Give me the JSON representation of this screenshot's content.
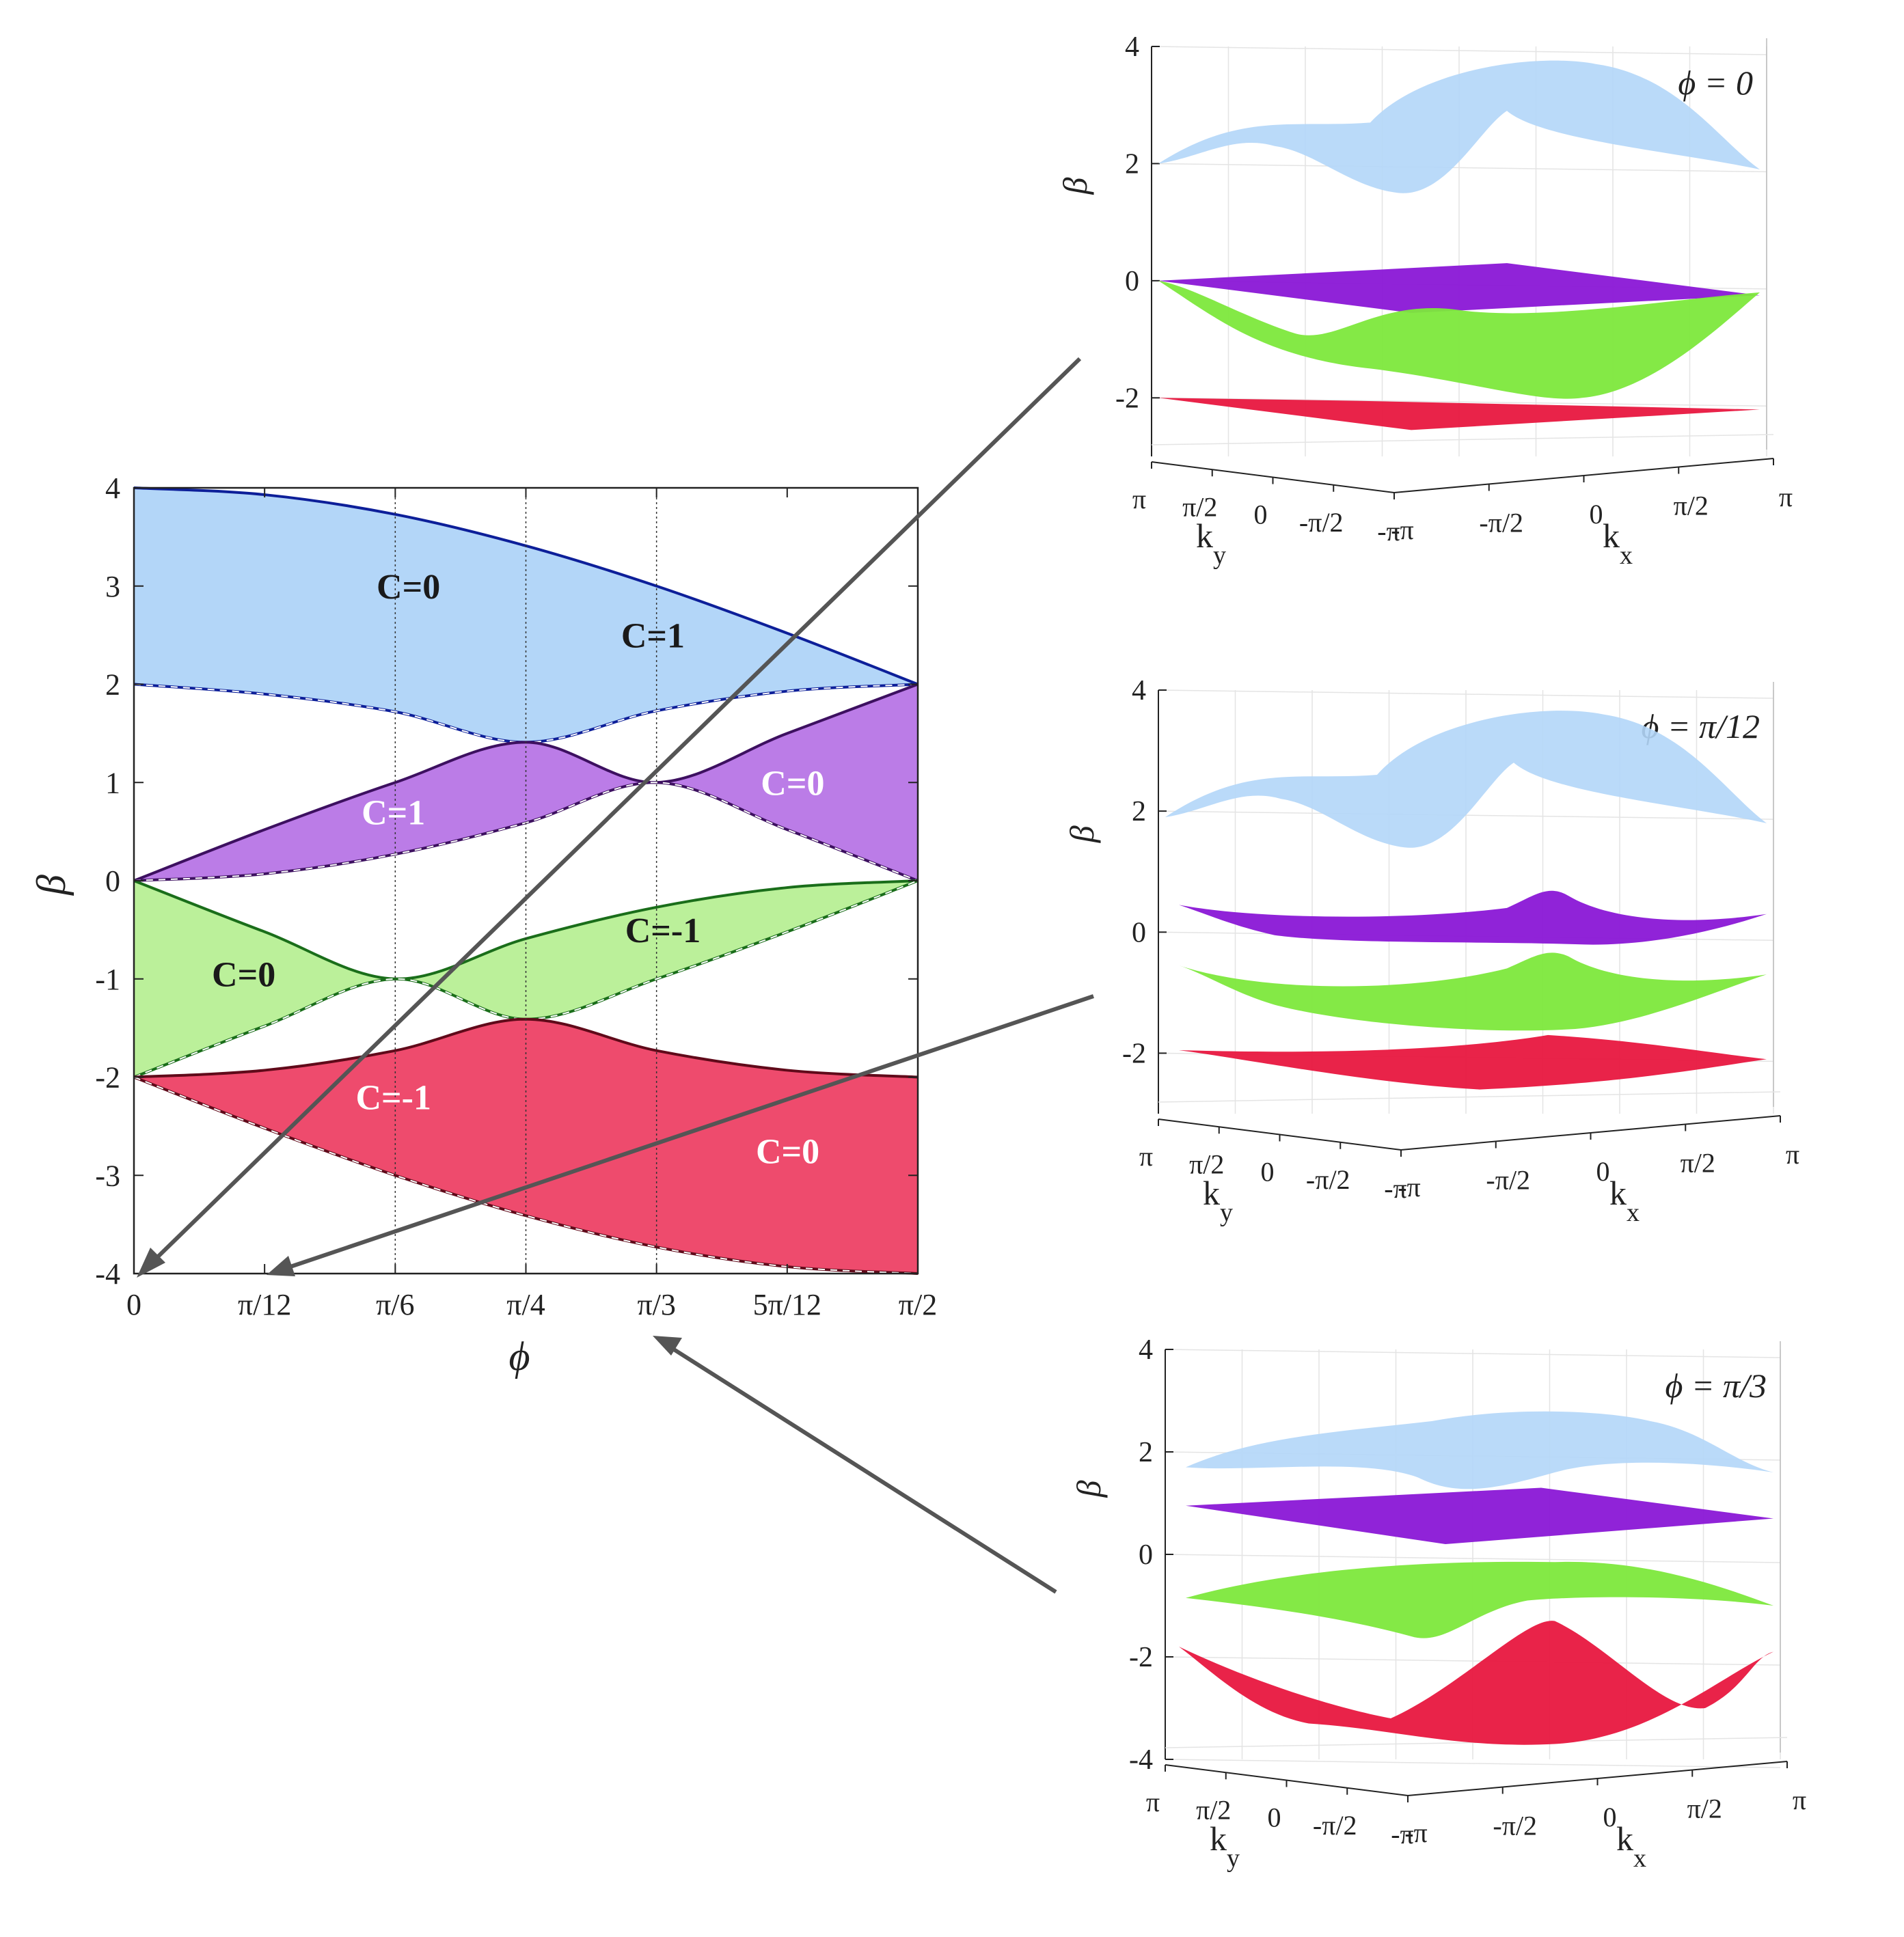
{
  "chart_data": [
    {
      "type": "area",
      "xlabel": "ϕ",
      "ylabel": "β",
      "xlim": [
        0,
        1.5708
      ],
      "ylim": [
        -4,
        4
      ],
      "grid": "vertical lines at π/6, π/4, π/3",
      "x_ticks": [
        {
          "value": 0,
          "label": "0"
        },
        {
          "value": 0.2618,
          "label": "π/12"
        },
        {
          "value": 0.5236,
          "label": "π/6"
        },
        {
          "value": 0.7854,
          "label": "π/4"
        },
        {
          "value": 1.0472,
          "label": "π/3"
        },
        {
          "value": 1.309,
          "label": "5π/12"
        },
        {
          "value": 1.5708,
          "label": "π/2"
        }
      ],
      "y_ticks": [
        "-4",
        "-3",
        "-2",
        "-1",
        "0",
        "1",
        "2",
        "3",
        "4"
      ],
      "y_tick_values": [
        -4,
        -3,
        -2,
        -1,
        0,
        1,
        2,
        3,
        4
      ],
      "colors": {
        "blue": "#b3d6f8",
        "purple": "#bb7ce7",
        "green": "#bbf09a",
        "red": "#ee4b6d",
        "blue_edge": "#0d1f99",
        "purple_edge": "#3d1060",
        "green_edge": "#1a6e1a",
        "red_edge": "#600a1a"
      },
      "bands": [
        {
          "color": "blue",
          "upper": "2+2cos(ϕ)",
          "lower": "min(2+2cos(2ϕ)... )",
          "x": [
            0,
            0.2618,
            0.5236,
            0.7854,
            1.0472,
            1.309,
            1.5708
          ],
          "upper_y": [
            4,
            3.93,
            3.73,
            3.41,
            3.0,
            2.52,
            2
          ],
          "lower_y": [
            2,
            1.9,
            1.72,
            1.41,
            1.73,
            1.93,
            2
          ]
        },
        {
          "color": "purple",
          "x": [
            0,
            0.2618,
            0.5236,
            0.7854,
            1.0472,
            1.309,
            1.5708
          ],
          "upper_y": [
            0,
            0.52,
            1.0,
            1.41,
            1.0,
            1.5,
            2
          ],
          "lower_y": [
            0,
            0.07,
            0.27,
            0.59,
            1.0,
            0.52,
            0
          ]
        },
        {
          "color": "green",
          "x": [
            0,
            0.2618,
            0.5236,
            0.7854,
            1.0472,
            1.309,
            1.5708
          ],
          "upper_y": [
            0,
            -0.52,
            -1.0,
            -0.59,
            -0.27,
            -0.07,
            0
          ],
          "lower_y": [
            -2,
            -1.48,
            -1.0,
            -1.41,
            -1.0,
            -0.52,
            0
          ]
        },
        {
          "color": "red",
          "x": [
            0,
            0.2618,
            0.5236,
            0.7854,
            1.0472,
            1.309,
            1.5708
          ],
          "upper_y": [
            -2,
            -1.93,
            -1.73,
            -1.41,
            -1.73,
            -1.93,
            -2
          ],
          "lower_y": [
            -2,
            -2.52,
            -3.0,
            -3.41,
            -3.73,
            -3.93,
            -4
          ]
        }
      ],
      "annotations": [
        {
          "text": "C=0",
          "x": 0.55,
          "y": 3.0,
          "color": "#1a1a1a"
        },
        {
          "text": "C=1",
          "x": 1.04,
          "y": 2.5,
          "color": "#1a1a1a"
        },
        {
          "text": "C=1",
          "x": 0.52,
          "y": 0.7,
          "color": "#ffffff"
        },
        {
          "text": "C=0",
          "x": 1.32,
          "y": 1.0,
          "color": "#ffffff"
        },
        {
          "text": "C=0",
          "x": 0.22,
          "y": -0.95,
          "color": "#1a1a1a"
        },
        {
          "text": "C=-1",
          "x": 1.06,
          "y": -0.5,
          "color": "#1a1a1a"
        },
        {
          "text": "C=-1",
          "x": 0.52,
          "y": -2.2,
          "color": "#ffffff"
        },
        {
          "text": "C=0",
          "x": 1.31,
          "y": -2.75,
          "color": "#ffffff"
        }
      ]
    },
    {
      "type": "surface",
      "title": "ϕ = 0",
      "zlabel": "β",
      "xlabel": "k",
      "xlabel_sub": "x",
      "ylabel": "k",
      "ylabel_sub": "y",
      "z_ticks": [
        "4",
        "2",
        "0",
        "-2"
      ],
      "kx_ticks": [
        "-π",
        "-π/2",
        "0",
        "π/2",
        "π"
      ],
      "ky_ticks": [
        "π",
        "π/2",
        "0",
        "-π/2",
        "-π"
      ],
      "bands": [
        "blue",
        "purple",
        "green",
        "red"
      ]
    },
    {
      "type": "surface",
      "title": "ϕ = π/12",
      "zlabel": "β",
      "xlabel": "k",
      "xlabel_sub": "x",
      "ylabel": "k",
      "ylabel_sub": "y",
      "z_ticks": [
        "4",
        "2",
        "0",
        "-2"
      ],
      "kx_ticks": [
        "-π",
        "-π/2",
        "0",
        "π/2",
        "π"
      ],
      "ky_ticks": [
        "π",
        "π/2",
        "0",
        "-π/2",
        "-π"
      ],
      "bands": [
        "blue",
        "purple",
        "green",
        "red"
      ]
    },
    {
      "type": "surface",
      "title": "ϕ = π/3",
      "zlabel": "β",
      "xlabel": "k",
      "xlabel_sub": "x",
      "ylabel": "k",
      "ylabel_sub": "y",
      "z_ticks": [
        "4",
        "2",
        "0",
        "-2",
        "-4"
      ],
      "kx_ticks": [
        "-π",
        "-π/2",
        "0",
        "π/2",
        "π"
      ],
      "ky_ticks": [
        "π",
        "π/2",
        "0",
        "-π/2",
        "-π"
      ],
      "bands": [
        "blue",
        "purple",
        "green",
        "red"
      ]
    }
  ]
}
